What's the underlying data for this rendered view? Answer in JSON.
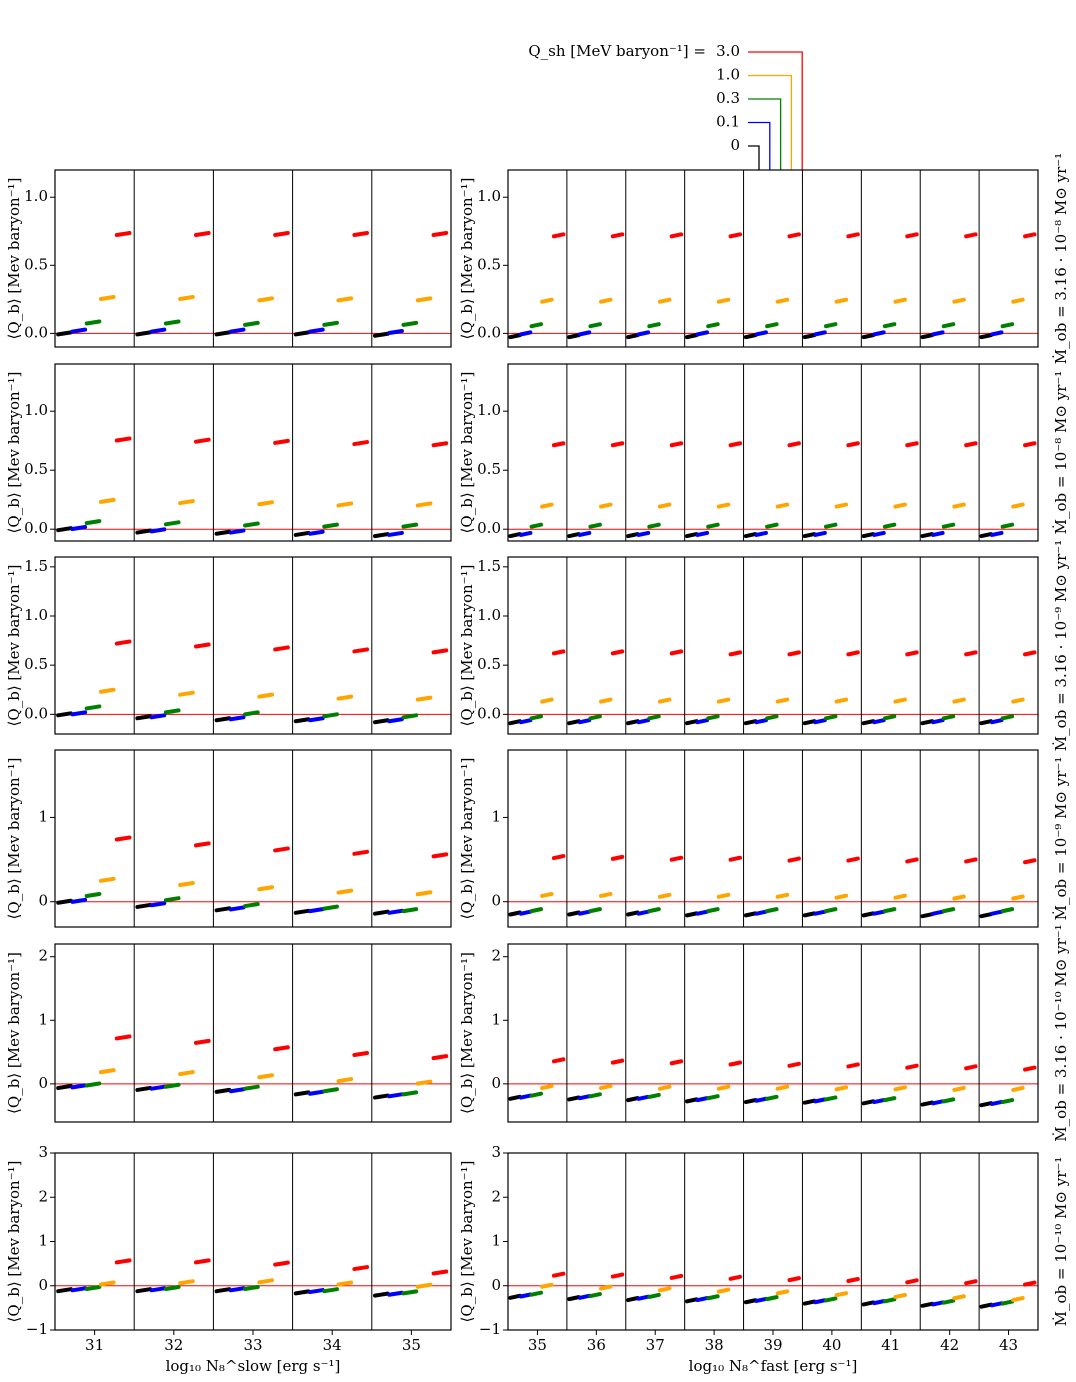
{
  "chart_data": {
    "type": "dot",
    "legend_title": "Q_sh [MeV baryon⁻¹] =",
    "series": [
      {
        "name": "0",
        "color": "#000000"
      },
      {
        "name": "0.1",
        "color": "#0000ff"
      },
      {
        "name": "0.3",
        "color": "#008000"
      },
      {
        "name": "1.0",
        "color": "#ffa500"
      },
      {
        "name": "3.0",
        "color": "#ff0000"
      }
    ],
    "reference_color": "#ff0000",
    "columns": [
      {
        "xlabel": "log₁₀ N₈^slow [erg s⁻¹]",
        "categories": [
          31,
          32,
          33,
          34,
          35
        ]
      },
      {
        "xlabel": "log₁₀ N₈^fast [erg s⁻¹]",
        "categories": [
          35,
          36,
          37,
          38,
          39,
          40,
          41,
          42,
          43
        ]
      }
    ],
    "rows": [
      {
        "right_label": "Ṁ_ob = 3.16 · 10⁻⁸ M⊙ yr⁻¹",
        "ylim": [
          -0.1,
          1.2
        ],
        "yticks": [
          {
            "value": 0,
            "label": "0.0"
          },
          0.5,
          {
            "value": 1,
            "label": "1.0"
          }
        ],
        "panels": [
          {
            "ylabel": "⟨Q_b⟩ [Mev baryon⁻¹]",
            "values": [
              [
                0,
                0,
                0,
                0,
                -0.01
              ],
              [
                0.02,
                0.02,
                0.02,
                0.02,
                0.01
              ],
              [
                0.08,
                0.08,
                0.07,
                0.07,
                0.07
              ],
              [
                0.26,
                0.26,
                0.25,
                0.25,
                0.25
              ],
              [
                0.73,
                0.73,
                0.73,
                0.73,
                0.73
              ]
            ]
          },
          {
            "ylabel": "⟨Q_b⟩ [Mev baryon⁻¹]",
            "values": [
              [
                -0.02,
                -0.02,
                -0.02,
                -0.02,
                -0.02,
                -0.02,
                -0.02,
                -0.02,
                -0.02
              ],
              [
                0,
                0,
                0,
                0,
                0,
                0,
                0,
                0,
                0
              ],
              [
                0.06,
                0.06,
                0.06,
                0.06,
                0.06,
                0.06,
                0.06,
                0.06,
                0.06
              ],
              [
                0.24,
                0.24,
                0.24,
                0.24,
                0.24,
                0.24,
                0.24,
                0.24,
                0.24
              ],
              [
                0.72,
                0.72,
                0.72,
                0.72,
                0.72,
                0.72,
                0.72,
                0.72,
                0.72
              ]
            ]
          }
        ]
      },
      {
        "right_label": "Ṁ_ob = 10⁻⁸ M⊙ yr⁻¹",
        "ylim": [
          -0.1,
          1.4
        ],
        "yticks": [
          {
            "value": 0,
            "label": "0.0"
          },
          0.5,
          {
            "value": 1,
            "label": "1.0"
          }
        ],
        "panels": [
          {
            "ylabel": "⟨Q_b⟩ [Mev baryon⁻¹]",
            "values": [
              [
                0,
                -0.02,
                -0.03,
                -0.04,
                -0.05
              ],
              [
                0.01,
                -0.01,
                -0.02,
                -0.03,
                -0.04
              ],
              [
                0.06,
                0.05,
                0.04,
                0.03,
                0.03
              ],
              [
                0.24,
                0.23,
                0.22,
                0.21,
                0.21
              ],
              [
                0.76,
                0.75,
                0.74,
                0.73,
                0.72
              ]
            ]
          },
          {
            "ylabel": "⟨Q_b⟩ [Mev baryon⁻¹]",
            "values": [
              [
                -0.05,
                -0.05,
                -0.05,
                -0.05,
                -0.05,
                -0.05,
                -0.05,
                -0.05,
                -0.05
              ],
              [
                -0.04,
                -0.04,
                -0.04,
                -0.04,
                -0.04,
                -0.04,
                -0.04,
                -0.04,
                -0.04
              ],
              [
                0.03,
                0.03,
                0.03,
                0.03,
                0.03,
                0.03,
                0.03,
                0.03,
                0.03
              ],
              [
                0.2,
                0.2,
                0.2,
                0.2,
                0.2,
                0.2,
                0.2,
                0.2,
                0.2
              ],
              [
                0.72,
                0.72,
                0.72,
                0.72,
                0.72,
                0.72,
                0.72,
                0.72,
                0.72
              ]
            ]
          }
        ]
      },
      {
        "right_label": "Ṁ_ob = 3.16 · 10⁻⁹ M⊙ yr⁻¹",
        "ylim": [
          -0.2,
          1.6
        ],
        "yticks": [
          {
            "value": 0,
            "label": "0.0"
          },
          0.5,
          {
            "value": 1,
            "label": "1.0"
          },
          1.5
        ],
        "panels": [
          {
            "ylabel": "⟨Q_b⟩ [Mev baryon⁻¹]",
            "values": [
              [
                0,
                -0.03,
                -0.05,
                -0.06,
                -0.07
              ],
              [
                0.01,
                -0.02,
                -0.04,
                -0.05,
                -0.06
              ],
              [
                0.07,
                0.03,
                0.01,
                -0.01,
                -0.02
              ],
              [
                0.24,
                0.21,
                0.19,
                0.17,
                0.16
              ],
              [
                0.73,
                0.7,
                0.67,
                0.65,
                0.64
              ]
            ]
          },
          {
            "ylabel": "⟨Q_b⟩ [Mev baryon⁻¹]",
            "values": [
              [
                -0.08,
                -0.08,
                -0.08,
                -0.08,
                -0.08,
                -0.08,
                -0.08,
                -0.08,
                -0.08
              ],
              [
                -0.07,
                -0.07,
                -0.07,
                -0.07,
                -0.07,
                -0.07,
                -0.07,
                -0.07,
                -0.07
              ],
              [
                -0.03,
                -0.03,
                -0.03,
                -0.03,
                -0.03,
                -0.03,
                -0.03,
                -0.03,
                -0.03
              ],
              [
                0.14,
                0.14,
                0.14,
                0.14,
                0.14,
                0.14,
                0.14,
                0.14,
                0.14
              ],
              [
                0.63,
                0.63,
                0.63,
                0.62,
                0.62,
                0.62,
                0.62,
                0.62,
                0.62
              ]
            ]
          }
        ]
      },
      {
        "right_label": "Ṁ_ob = 10⁻⁹ M⊙ yr⁻¹",
        "ylim": [
          -0.3,
          1.8
        ],
        "yticks": [
          0,
          1
        ],
        "panels": [
          {
            "ylabel": "⟨Q_b⟩ [Mev baryon⁻¹]",
            "values": [
              [
                0,
                -0.05,
                -0.09,
                -0.12,
                -0.13
              ],
              [
                0.01,
                -0.03,
                -0.08,
                -0.1,
                -0.12
              ],
              [
                0.08,
                0.03,
                -0.04,
                -0.07,
                -0.1
              ],
              [
                0.26,
                0.21,
                0.16,
                0.12,
                0.1
              ],
              [
                0.75,
                0.68,
                0.62,
                0.58,
                0.55
              ]
            ]
          },
          {
            "ylabel": "⟨Q_b⟩ [Mev baryon⁻¹]",
            "values": [
              [
                -0.14,
                -0.14,
                -0.14,
                -0.15,
                -0.15,
                -0.15,
                -0.15,
                -0.16,
                -0.16
              ],
              [
                -0.13,
                -0.13,
                -0.13,
                -0.13,
                -0.13,
                -0.13,
                -0.13,
                -0.13,
                -0.13
              ],
              [
                -0.1,
                -0.1,
                -0.1,
                -0.1,
                -0.1,
                -0.1,
                -0.1,
                -0.1,
                -0.1
              ],
              [
                0.08,
                0.08,
                0.07,
                0.07,
                0.07,
                0.06,
                0.06,
                0.05,
                0.05
              ],
              [
                0.53,
                0.52,
                0.51,
                0.51,
                0.5,
                0.5,
                0.49,
                0.49,
                0.48
              ]
            ]
          }
        ]
      },
      {
        "right_label": "Ṁ_ob = 3.16 · 10⁻¹⁰ M⊙ yr⁻¹",
        "ylim": [
          -0.6,
          2.2
        ],
        "yticks": [
          0,
          1,
          2
        ],
        "panels": [
          {
            "ylabel": "⟨Q_b⟩ [Mev baryon⁻¹]",
            "values": [
              [
                -0.05,
                -0.08,
                -0.11,
                -0.15,
                -0.2
              ],
              [
                -0.04,
                -0.06,
                -0.1,
                -0.14,
                -0.18
              ],
              [
                -0.01,
                -0.03,
                -0.06,
                -0.1,
                -0.15
              ],
              [
                0.2,
                0.17,
                0.12,
                0.06,
                0.02
              ],
              [
                0.73,
                0.66,
                0.56,
                0.47,
                0.42
              ]
            ]
          },
          {
            "ylabel": "⟨Q_b⟩ [Mev baryon⁻¹]",
            "values": [
              [
                -0.22,
                -0.23,
                -0.24,
                -0.26,
                -0.27,
                -0.28,
                -0.29,
                -0.31,
                -0.32
              ],
              [
                -0.2,
                -0.21,
                -0.22,
                -0.24,
                -0.25,
                -0.26,
                -0.27,
                -0.29,
                -0.3
              ],
              [
                -0.17,
                -0.18,
                -0.19,
                -0.21,
                -0.22,
                -0.23,
                -0.24,
                -0.26,
                -0.27
              ],
              [
                -0.05,
                -0.05,
                -0.06,
                -0.06,
                -0.06,
                -0.07,
                -0.07,
                -0.08,
                -0.08
              ],
              [
                0.37,
                0.35,
                0.34,
                0.32,
                0.3,
                0.29,
                0.27,
                0.26,
                0.24
              ]
            ]
          }
        ]
      },
      {
        "right_label": "Ṁ_ob = 10⁻¹⁰ M⊙ yr⁻¹",
        "ylim": [
          -1,
          3
        ],
        "yticks": [
          {
            "value": -1,
            "label": "−1"
          },
          0,
          1,
          2,
          3
        ],
        "panels": [
          {
            "ylabel": "⟨Q_b⟩ [Mev baryon⁻¹]",
            "values": [
              [
                -0.1,
                -0.1,
                -0.1,
                -0.15,
                -0.2
              ],
              [
                -0.08,
                -0.08,
                -0.08,
                -0.12,
                -0.18
              ],
              [
                -0.05,
                -0.05,
                -0.05,
                -0.1,
                -0.15
              ],
              [
                0.05,
                0.08,
                0.1,
                0.05,
                0
              ],
              [
                0.55,
                0.55,
                0.5,
                0.4,
                0.3
              ]
            ]
          },
          {
            "ylabel": "⟨Q_b⟩ [Mev baryon⁻¹]",
            "values": [
              [
                -0.25,
                -0.28,
                -0.3,
                -0.33,
                -0.35,
                -0.38,
                -0.4,
                -0.43,
                -0.45
              ],
              [
                -0.22,
                -0.25,
                -0.27,
                -0.3,
                -0.32,
                -0.35,
                -0.37,
                -0.4,
                -0.42
              ],
              [
                -0.18,
                -0.21,
                -0.23,
                -0.26,
                -0.28,
                -0.31,
                -0.33,
                -0.36,
                -0.38
              ],
              [
                0,
                -0.04,
                -0.08,
                -0.11,
                -0.15,
                -0.19,
                -0.23,
                -0.26,
                -0.3
              ],
              [
                0.25,
                0.23,
                0.2,
                0.18,
                0.15,
                0.13,
                0.1,
                0.08,
                0.05
              ]
            ]
          }
        ]
      }
    ]
  }
}
